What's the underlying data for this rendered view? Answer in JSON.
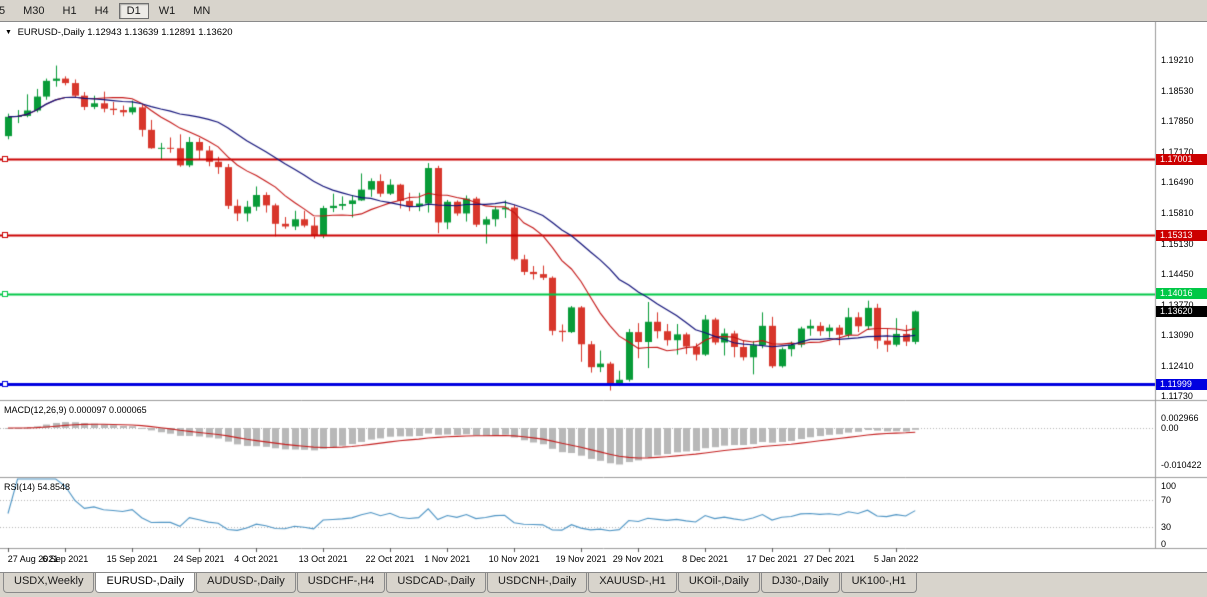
{
  "toolbar": {
    "buttons": [
      {
        "label": "5",
        "active": false
      },
      {
        "label": "M30",
        "active": false
      },
      {
        "label": "H1",
        "active": false
      },
      {
        "label": "H4",
        "active": false
      },
      {
        "label": "D1",
        "active": true
      },
      {
        "label": "W1",
        "active": false
      },
      {
        "label": "MN",
        "active": false
      }
    ]
  },
  "quote": {
    "symbol": "EURUSD-,Daily",
    "ohlc": "1.12943 1.13639 1.12891 1.13620"
  },
  "chart_data": {
    "type": "candlestick",
    "symbol": "EURUSD-,Daily",
    "ylim": [
      1.1165,
      1.1997
    ],
    "y_axis_labels": [
      "1.19210",
      "1.18530",
      "1.17850",
      "1.17170",
      "1.16490",
      "1.15810",
      "1.15130",
      "1.14450",
      "1.13770",
      "1.13090",
      "1.12410",
      "1.11730"
    ],
    "colors": {
      "up": "#089b38",
      "down": "#d8362b",
      "ma_fast": "#c41414",
      "ma_slow": "#12127a",
      "macd_hist": "#b8b8b8",
      "macd_signal": "#c42020",
      "rsi": "#4d94c4"
    },
    "overlays": [
      {
        "name": "ma-fast",
        "period": 10
      },
      {
        "name": "ma-slow",
        "period": 20
      }
    ],
    "hlines": [
      {
        "value": 1.17001,
        "label": "1.17001",
        "color": "#cc0000",
        "width": 2
      },
      {
        "value": 1.15313,
        "label": "1.15313",
        "color": "#cc0000",
        "width": 2
      },
      {
        "value": 1.14016,
        "label": "1.14016",
        "color": "#00c846",
        "width": 2
      },
      {
        "value": 1.11999,
        "label": "1.11999",
        "color": "#0000e0",
        "width": 3
      }
    ],
    "current_price": {
      "value": 1.1362,
      "label": "1.13620",
      "color": "#000000"
    },
    "indicators": [
      {
        "name": "MACD",
        "label": "MACD(12,26,9) 0.000097 0.000065",
        "params": [
          12,
          26,
          9
        ],
        "axis": [
          {
            "label": "0.002966",
            "value": 0.002966
          },
          {
            "label": "0.00",
            "value": 0
          },
          {
            "label": "-0.010422",
            "value": -0.010422
          }
        ]
      },
      {
        "name": "RSI",
        "label": "RSI(14) 54.8548",
        "period": 14,
        "levels": [
          70,
          30
        ],
        "axis": [
          {
            "label": "100",
            "value": 100
          },
          {
            "label": "70",
            "value": 70
          },
          {
            "label": "30",
            "value": 30
          },
          {
            "label": "0",
            "value": 0
          }
        ]
      }
    ],
    "x_labels": [
      {
        "label": "27 Aug 2021",
        "index": 0
      },
      {
        "label": "6 Sep 2021",
        "index": 6
      },
      {
        "label": "15 Sep 2021",
        "index": 13
      },
      {
        "label": "24 Sep 2021",
        "index": 20
      },
      {
        "label": "4 Oct 2021",
        "index": 26
      },
      {
        "label": "13 Oct 2021",
        "index": 33
      },
      {
        "label": "22 Oct 2021",
        "index": 40
      },
      {
        "label": "1 Nov 2021",
        "index": 46
      },
      {
        "label": "10 Nov 2021",
        "index": 53
      },
      {
        "label": "19 Nov 2021",
        "index": 60
      },
      {
        "label": "29 Nov 2021",
        "index": 66
      },
      {
        "label": "8 Dec 2021",
        "index": 73
      },
      {
        "label": "17 Dec 2021",
        "index": 80
      },
      {
        "label": "27 Dec 2021",
        "index": 86
      },
      {
        "label": "5 Jan 2022",
        "index": 93
      }
    ],
    "candles": [
      [
        1.1752,
        1.1802,
        1.1745,
        1.1795
      ],
      [
        1.1795,
        1.181,
        1.1781,
        1.1797
      ],
      [
        1.1797,
        1.1845,
        1.1794,
        1.1809
      ],
      [
        1.1809,
        1.1857,
        1.1805,
        1.184
      ],
      [
        1.184,
        1.188,
        1.1833,
        1.1875
      ],
      [
        1.1875,
        1.1909,
        1.1862,
        1.188
      ],
      [
        1.188,
        1.1885,
        1.1865,
        1.187
      ],
      [
        1.187,
        1.1878,
        1.1838,
        1.1842
      ],
      [
        1.1842,
        1.185,
        1.181,
        1.1817
      ],
      [
        1.1817,
        1.1842,
        1.1812,
        1.1825
      ],
      [
        1.1825,
        1.1851,
        1.1805,
        1.1813
      ],
      [
        1.1813,
        1.1828,
        1.1799,
        1.181
      ],
      [
        1.181,
        1.182,
        1.1796,
        1.1805
      ],
      [
        1.1805,
        1.1831,
        1.18,
        1.1816
      ],
      [
        1.1816,
        1.1821,
        1.1751,
        1.1766
      ],
      [
        1.1766,
        1.1788,
        1.1724,
        1.1725
      ],
      [
        1.1725,
        1.1737,
        1.17,
        1.1726
      ],
      [
        1.1726,
        1.1749,
        1.1715,
        1.1725
      ],
      [
        1.1725,
        1.1756,
        1.1684,
        1.1687
      ],
      [
        1.1687,
        1.175,
        1.1683,
        1.1739
      ],
      [
        1.1739,
        1.1748,
        1.1701,
        1.172
      ],
      [
        1.172,
        1.173,
        1.1685,
        1.1695
      ],
      [
        1.1695,
        1.1706,
        1.1668,
        1.1683
      ],
      [
        1.1683,
        1.169,
        1.159,
        1.1597
      ],
      [
        1.1597,
        1.1611,
        1.1563,
        1.158
      ],
      [
        1.158,
        1.1608,
        1.1562,
        1.1595
      ],
      [
        1.1595,
        1.164,
        1.1586,
        1.1621
      ],
      [
        1.1621,
        1.1627,
        1.1582,
        1.1598
      ],
      [
        1.1598,
        1.1602,
        1.1529,
        1.1557
      ],
      [
        1.1557,
        1.1572,
        1.1546,
        1.1551
      ],
      [
        1.1551,
        1.1586,
        1.1543,
        1.1567
      ],
      [
        1.1567,
        1.1586,
        1.1549,
        1.1553
      ],
      [
        1.1553,
        1.1572,
        1.1524,
        1.153
      ],
      [
        1.153,
        1.1597,
        1.1525,
        1.1592
      ],
      [
        1.1592,
        1.1624,
        1.1583,
        1.1597
      ],
      [
        1.1597,
        1.1618,
        1.1588,
        1.1601
      ],
      [
        1.1601,
        1.1621,
        1.1571,
        1.1609
      ],
      [
        1.1609,
        1.1669,
        1.1608,
        1.1633
      ],
      [
        1.1633,
        1.1658,
        1.1617,
        1.1652
      ],
      [
        1.1652,
        1.1667,
        1.1617,
        1.1624
      ],
      [
        1.1624,
        1.1656,
        1.1621,
        1.1644
      ],
      [
        1.1644,
        1.1646,
        1.1591,
        1.1608
      ],
      [
        1.1608,
        1.1626,
        1.1585,
        1.1596
      ],
      [
        1.1596,
        1.1626,
        1.1585,
        1.1602
      ],
      [
        1.1602,
        1.1692,
        1.1582,
        1.1681
      ],
      [
        1.1681,
        1.1686,
        1.1536,
        1.156
      ],
      [
        1.156,
        1.161,
        1.1545,
        1.1606
      ],
      [
        1.1606,
        1.1609,
        1.1575,
        1.158
      ],
      [
        1.158,
        1.162,
        1.1562,
        1.1613
      ],
      [
        1.1613,
        1.1617,
        1.155,
        1.1555
      ],
      [
        1.1555,
        1.1573,
        1.1513,
        1.1567
      ],
      [
        1.1567,
        1.1595,
        1.1551,
        1.1589
      ],
      [
        1.1589,
        1.1609,
        1.157,
        1.1593
      ],
      [
        1.1593,
        1.1599,
        1.1475,
        1.1478
      ],
      [
        1.1478,
        1.1488,
        1.1443,
        1.145
      ],
      [
        1.145,
        1.1463,
        1.1433,
        1.1445
      ],
      [
        1.1445,
        1.1464,
        1.1432,
        1.1437
      ],
      [
        1.1437,
        1.144,
        1.1309,
        1.1319
      ],
      [
        1.1319,
        1.1333,
        1.1295,
        1.1316
      ],
      [
        1.1316,
        1.1374,
        1.1314,
        1.1371
      ],
      [
        1.1371,
        1.1374,
        1.125,
        1.1289
      ],
      [
        1.1289,
        1.1296,
        1.1226,
        1.1238
      ],
      [
        1.1238,
        1.1275,
        1.1227,
        1.1246
      ],
      [
        1.1246,
        1.125,
        1.1186,
        1.1199
      ],
      [
        1.1199,
        1.123,
        1.1196,
        1.121
      ],
      [
        1.121,
        1.1323,
        1.1206,
        1.1316
      ],
      [
        1.1316,
        1.1336,
        1.1258,
        1.1294
      ],
      [
        1.1294,
        1.1383,
        1.1236,
        1.1339
      ],
      [
        1.1339,
        1.136,
        1.1302,
        1.1318
      ],
      [
        1.1318,
        1.1334,
        1.1286,
        1.1298
      ],
      [
        1.1298,
        1.1334,
        1.1266,
        1.1311
      ],
      [
        1.1311,
        1.1315,
        1.1267,
        1.1284
      ],
      [
        1.1284,
        1.1291,
        1.1253,
        1.1266
      ],
      [
        1.1266,
        1.1354,
        1.1263,
        1.1344
      ],
      [
        1.1344,
        1.1348,
        1.1288,
        1.1293
      ],
      [
        1.1293,
        1.1324,
        1.1264,
        1.1313
      ],
      [
        1.1313,
        1.1319,
        1.126,
        1.1283
      ],
      [
        1.1283,
        1.1297,
        1.1253,
        1.126
      ],
      [
        1.126,
        1.1296,
        1.1222,
        1.1287
      ],
      [
        1.1287,
        1.136,
        1.128,
        1.133
      ],
      [
        1.133,
        1.135,
        1.1236,
        1.124
      ],
      [
        1.124,
        1.1282,
        1.1237,
        1.1278
      ],
      [
        1.1278,
        1.1295,
        1.1262,
        1.1288
      ],
      [
        1.1288,
        1.1328,
        1.1282,
        1.1324
      ],
      [
        1.1324,
        1.1344,
        1.1308,
        1.133
      ],
      [
        1.133,
        1.1338,
        1.1308,
        1.1318
      ],
      [
        1.1318,
        1.1333,
        1.1304,
        1.1326
      ],
      [
        1.1326,
        1.1332,
        1.1287,
        1.131
      ],
      [
        1.131,
        1.137,
        1.1304,
        1.1349
      ],
      [
        1.1349,
        1.136,
        1.1316,
        1.1329
      ],
      [
        1.1329,
        1.1386,
        1.1321,
        1.137
      ],
      [
        1.137,
        1.1379,
        1.1279,
        1.1297
      ],
      [
        1.1297,
        1.1323,
        1.1272,
        1.1288
      ],
      [
        1.1288,
        1.1347,
        1.1284,
        1.1312
      ],
      [
        1.1312,
        1.1332,
        1.1285,
        1.1295
      ],
      [
        1.12943,
        1.13639,
        1.12891,
        1.1362
      ]
    ]
  },
  "tabs": {
    "items": [
      {
        "label": "USDX,Weekly",
        "active": false
      },
      {
        "label": "EURUSD-,Daily",
        "active": true
      },
      {
        "label": "AUDUSD-,Daily",
        "active": false
      },
      {
        "label": "USDCHF-,H4",
        "active": false
      },
      {
        "label": "USDCAD-,Daily",
        "active": false
      },
      {
        "label": "USDCNH-,Daily",
        "active": false
      },
      {
        "label": "XAUUSD-,H1",
        "active": false
      },
      {
        "label": "UKOil-,Daily",
        "active": false
      },
      {
        "label": "DJ30-,Daily",
        "active": false
      },
      {
        "label": "UK100-,H1",
        "active": false
      }
    ]
  }
}
